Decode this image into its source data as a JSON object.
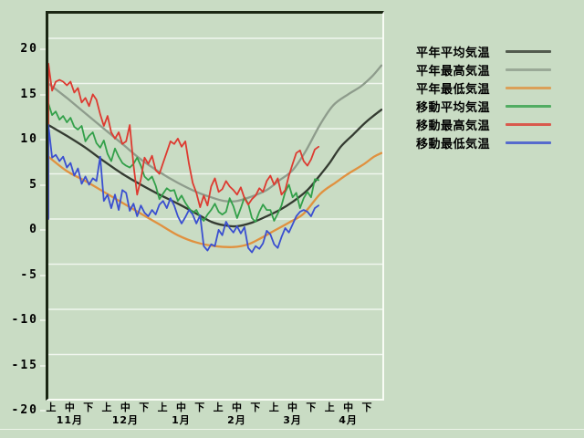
{
  "colors": {
    "background": "#c9dcc4",
    "grid": "#f0f6ee",
    "frame_dark": "#1a2613",
    "frame_light": "#f8fcf5",
    "text": "#000000"
  },
  "y_axis": {
    "tick_labels": [
      "20",
      "15",
      "10",
      "5",
      "0",
      "-5",
      "-10",
      "-15",
      "-20"
    ],
    "tick_values": [
      20,
      15,
      10,
      5,
      0,
      -5,
      -10,
      -15,
      -20
    ]
  },
  "x_axis": {
    "period_ticks": [
      "上",
      "中",
      "下",
      "上",
      "中",
      "下",
      "上",
      "中",
      "下",
      "上",
      "中",
      "下",
      "上",
      "中",
      "下",
      "上",
      "中",
      "下"
    ],
    "month_labels": [
      "11月",
      "12月",
      "1月",
      "2月",
      "3月",
      "4月"
    ]
  },
  "legend": {
    "items": [
      {
        "label": "平年平均気温",
        "series_key": "norm_mean"
      },
      {
        "label": "平年最高気温",
        "series_key": "norm_max"
      },
      {
        "label": "平年最低気温",
        "series_key": "norm_min"
      },
      {
        "label": "移動平均気温",
        "series_key": "move_mean"
      },
      {
        "label": "移動最高気温",
        "series_key": "move_max"
      },
      {
        "label": "移動最低気温",
        "series_key": "move_min"
      }
    ]
  },
  "chart_data": {
    "type": "line",
    "x_unit": "days from Nov 1 (axis ticks = 上/中/下 of each month, Nov-Apr)",
    "x_range_days": [
      0,
      180
    ],
    "ylim": [
      -20,
      20
    ],
    "grid": "horizontal white lines every 5 degrees",
    "legend_position": "right",
    "series": [
      {
        "key": "norm_mean",
        "name": "平年平均気温",
        "color": "#343b31",
        "style": "smooth",
        "anchors": [
          [
            0,
            10.4
          ],
          [
            10,
            9.2
          ],
          [
            20,
            7.9
          ],
          [
            30,
            6.4
          ],
          [
            40,
            5.0
          ],
          [
            50,
            3.8
          ],
          [
            60,
            2.7
          ],
          [
            70,
            1.7
          ],
          [
            80,
            0.6
          ],
          [
            88,
            -0.3
          ],
          [
            95,
            -0.7
          ],
          [
            102,
            -0.8
          ],
          [
            110,
            -0.4
          ],
          [
            118,
            0.3
          ],
          [
            125,
            1.0
          ],
          [
            132,
            1.9
          ],
          [
            140,
            3.2
          ],
          [
            147,
            4.9
          ],
          [
            152,
            6.2
          ],
          [
            158,
            8.0
          ],
          [
            165,
            9.4
          ],
          [
            172,
            10.8
          ],
          [
            180,
            12.1
          ]
        ]
      },
      {
        "key": "norm_max",
        "name": "平年最高気温",
        "color": "#8e9c8c",
        "style": "smooth",
        "anchors": [
          [
            0,
            15.0
          ],
          [
            10,
            13.4
          ],
          [
            20,
            11.7
          ],
          [
            30,
            10.0
          ],
          [
            40,
            8.3
          ],
          [
            50,
            6.6
          ],
          [
            60,
            5.2
          ],
          [
            70,
            4.0
          ],
          [
            80,
            3.0
          ],
          [
            88,
            2.4
          ],
          [
            95,
            2.0
          ],
          [
            102,
            2.0
          ],
          [
            110,
            2.5
          ],
          [
            118,
            3.2
          ],
          [
            125,
            4.3
          ],
          [
            132,
            5.4
          ],
          [
            139,
            7.5
          ],
          [
            147,
            10.5
          ],
          [
            154,
            12.6
          ],
          [
            162,
            13.8
          ],
          [
            169,
            14.7
          ],
          [
            175,
            15.8
          ],
          [
            180,
            17.0
          ]
        ]
      },
      {
        "key": "norm_min",
        "name": "平年最低気温",
        "color": "#e0913f",
        "style": "smooth",
        "anchors": [
          [
            0,
            6.9
          ],
          [
            10,
            5.3
          ],
          [
            20,
            4.2
          ],
          [
            30,
            3.0
          ],
          [
            40,
            1.8
          ],
          [
            50,
            0.6
          ],
          [
            60,
            -0.6
          ],
          [
            70,
            -1.8
          ],
          [
            80,
            -2.6
          ],
          [
            90,
            -3.0
          ],
          [
            100,
            -3.1
          ],
          [
            108,
            -2.8
          ],
          [
            115,
            -2.1
          ],
          [
            122,
            -1.3
          ],
          [
            130,
            -0.4
          ],
          [
            138,
            0.6
          ],
          [
            147,
            2.8
          ],
          [
            155,
            4.0
          ],
          [
            162,
            5.0
          ],
          [
            170,
            6.0
          ],
          [
            176,
            6.9
          ],
          [
            180,
            7.3
          ]
        ]
      },
      {
        "key": "move_mean",
        "name": "移動平均気温",
        "color": "#33a04a",
        "style": "jagged",
        "start_day": 0,
        "step_days": 2,
        "starts_at_zero": true,
        "values": [
          12.8,
          11.5,
          11.9,
          11.0,
          11.4,
          10.7,
          11.2,
          10.2,
          9.9,
          10.3,
          8.6,
          9.2,
          9.6,
          8.4,
          7.9,
          8.7,
          7.2,
          6.4,
          7.8,
          6.9,
          6.2,
          5.9,
          5.7,
          6.1,
          6.8,
          5.9,
          4.7,
          4.3,
          4.7,
          3.7,
          2.2,
          2.8,
          3.4,
          3.1,
          3.2,
          2.0,
          2.6,
          1.8,
          1.2,
          0.7,
          1.0,
          0.2,
          -0.2,
          0.5,
          1.0,
          1.7,
          0.8,
          0.5,
          0.8,
          2.3,
          1.4,
          0.1,
          1.2,
          2.4,
          1.7,
          0.1,
          -0.3,
          0.8,
          1.6,
          1.0,
          1.0,
          -0.2,
          0.6,
          1.5,
          3.0,
          3.8,
          2.4,
          2.9,
          1.2,
          2.3,
          3.0,
          2.4,
          4.4,
          4.3
        ]
      },
      {
        "key": "move_max",
        "name": "移動最高気温",
        "color": "#dd3a30",
        "style": "jagged",
        "start_day": 0,
        "step_days": 2,
        "starts_at_zero": true,
        "values": [
          17.2,
          14.2,
          15.2,
          15.4,
          15.2,
          14.8,
          15.2,
          14.0,
          14.5,
          12.9,
          13.4,
          12.5,
          13.8,
          13.2,
          11.6,
          10.3,
          11.4,
          9.6,
          8.9,
          9.6,
          8.3,
          8.6,
          10.4,
          6.0,
          2.7,
          4.4,
          6.8,
          6.1,
          7.0,
          5.4,
          5.0,
          6.2,
          7.4,
          8.6,
          8.3,
          8.9,
          8.0,
          8.6,
          6.1,
          4.0,
          2.9,
          1.3,
          2.6,
          1.5,
          3.6,
          4.5,
          3.0,
          3.3,
          4.2,
          3.6,
          3.2,
          2.7,
          3.5,
          2.3,
          1.6,
          2.2,
          2.6,
          3.4,
          3.0,
          4.2,
          4.8,
          3.8,
          4.5,
          2.7,
          3.2,
          4.8,
          6.1,
          7.3,
          7.6,
          6.4,
          5.9,
          6.6,
          7.7,
          8.0
        ]
      },
      {
        "key": "move_min",
        "name": "移動最低気温",
        "color": "#3a4fd0",
        "style": "jagged",
        "start_day": 0,
        "step_days": 2,
        "starts_at_zero": true,
        "values": [
          10.4,
          6.8,
          7.1,
          6.4,
          6.9,
          5.7,
          6.2,
          4.8,
          5.6,
          3.9,
          4.7,
          3.8,
          4.5,
          4.2,
          6.9,
          2.0,
          2.7,
          1.2,
          2.7,
          1.0,
          3.2,
          2.9,
          0.9,
          1.7,
          0.3,
          1.5,
          0.7,
          0.3,
          1.0,
          0.5,
          1.6,
          2.0,
          1.2,
          2.3,
          1.5,
          0.3,
          -0.5,
          0.2,
          1.0,
          0.5,
          -0.5,
          0.4,
          -3.0,
          -3.5,
          -2.8,
          -3.0,
          -1.2,
          -1.8,
          -0.3,
          -1.0,
          -1.5,
          -0.8,
          -1.6,
          -0.9,
          -3.2,
          -3.7,
          -3.0,
          -3.3,
          -2.7,
          -1.3,
          -1.7,
          -2.8,
          -3.2,
          -2.0,
          -1.0,
          -1.5,
          -0.6,
          0.3,
          0.8,
          1.0,
          0.8,
          0.3,
          1.2,
          1.5
        ]
      }
    ]
  }
}
